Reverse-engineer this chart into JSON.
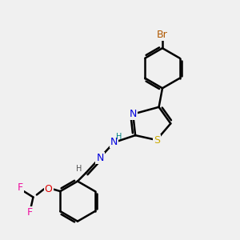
{
  "bg_color": "#f0f0f0",
  "bond_color": "#000000",
  "bond_width": 1.8,
  "dbo": 0.12,
  "atom_colors": {
    "Br": "#b05800",
    "N": "#0000dd",
    "S": "#ccaa00",
    "O": "#dd0000",
    "F": "#ee10a0",
    "H_teal": "#008080",
    "H_gray": "#555555",
    "C": "#000000"
  },
  "font_size": 9,
  "fig_size": [
    3.0,
    3.0
  ],
  "dpi": 100
}
